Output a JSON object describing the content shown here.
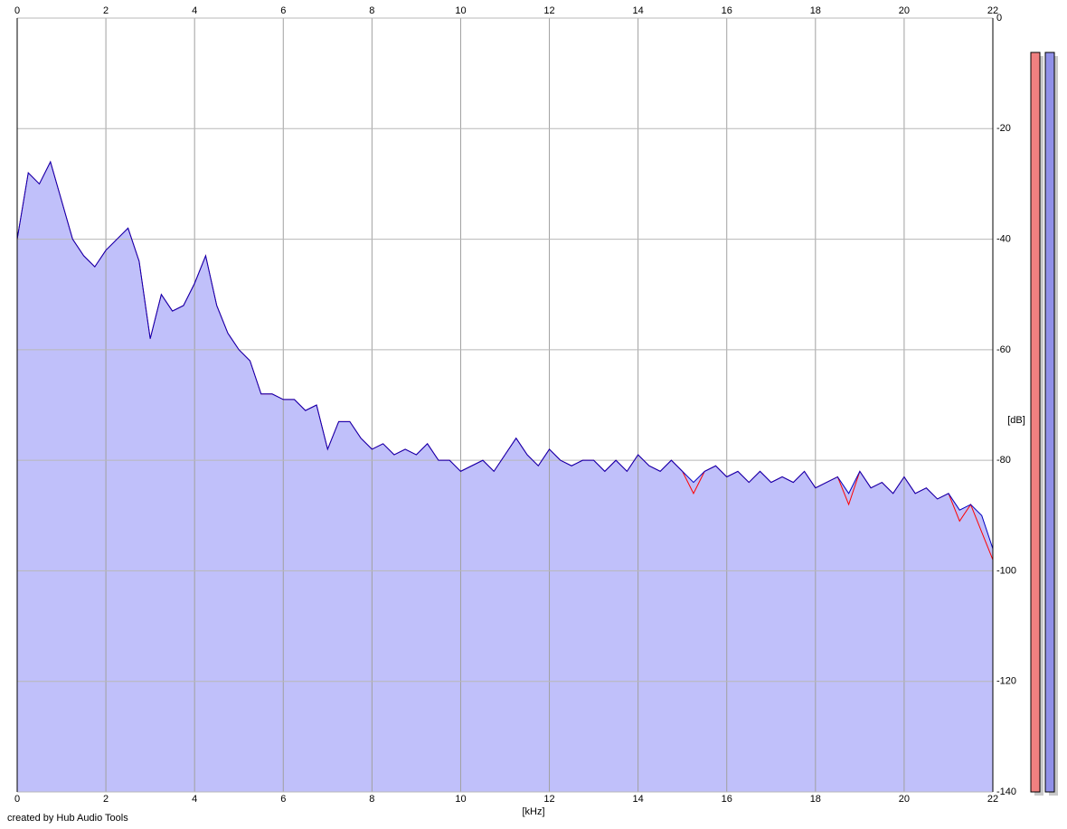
{
  "chart_data": {
    "type": "area",
    "x_label": "[kHz]",
    "y_label": "[dB]",
    "annotation": "created by Hub Audio Tools",
    "x": [
      0,
      0.25,
      0.5,
      0.75,
      1,
      1.25,
      1.5,
      1.75,
      2,
      2.25,
      2.5,
      2.75,
      3,
      3.25,
      3.5,
      3.75,
      4,
      4.25,
      4.5,
      4.75,
      5,
      5.25,
      5.5,
      5.75,
      6,
      6.25,
      6.5,
      6.75,
      7,
      7.25,
      7.5,
      7.75,
      8,
      8.25,
      8.5,
      8.75,
      9,
      9.25,
      9.5,
      9.75,
      10,
      10.25,
      10.5,
      10.75,
      11,
      11.25,
      11.5,
      11.75,
      12,
      12.25,
      12.5,
      12.75,
      13,
      13.25,
      13.5,
      13.75,
      14,
      14.25,
      14.5,
      14.75,
      15,
      15.25,
      15.5,
      15.75,
      16,
      16.25,
      16.5,
      16.75,
      17,
      17.25,
      17.5,
      17.75,
      18,
      18.25,
      18.5,
      18.75,
      19,
      19.25,
      19.5,
      19.75,
      20,
      20.25,
      20.5,
      20.75,
      21,
      21.25,
      21.5,
      21.75,
      22
    ],
    "series": [
      {
        "name": "L",
        "color": "#ff0000",
        "values": [
          -40,
          -28,
          -30,
          -26,
          -33,
          -40,
          -43,
          -45,
          -42,
          -40,
          -38,
          -44,
          -58,
          -50,
          -53,
          -52,
          -48,
          -43,
          -52,
          -57,
          -60,
          -62,
          -68,
          -68,
          -69,
          -69,
          -71,
          -70,
          -78,
          -73,
          -73,
          -76,
          -78,
          -77,
          -79,
          -78,
          -79,
          -77,
          -80,
          -80,
          -82,
          -81,
          -80,
          -82,
          -79,
          -76,
          -79,
          -81,
          -78,
          -80,
          -81,
          -80,
          -80,
          -82,
          -80,
          -82,
          -79,
          -81,
          -82,
          -80,
          -82,
          -86,
          -82,
          -81,
          -83,
          -82,
          -84,
          -82,
          -84,
          -83,
          -84,
          -82,
          -85,
          -84,
          -83,
          -88,
          -82,
          -85,
          -84,
          -86,
          -83,
          -86,
          -85,
          -87,
          -86,
          -91,
          -88,
          -93,
          -98
        ]
      },
      {
        "name": "R",
        "color": "#0000c0",
        "values": [
          -40,
          -28,
          -30,
          -26,
          -33,
          -40,
          -43,
          -45,
          -42,
          -40,
          -38,
          -44,
          -58,
          -50,
          -53,
          -52,
          -48,
          -43,
          -52,
          -57,
          -60,
          -62,
          -68,
          -68,
          -69,
          -69,
          -71,
          -70,
          -78,
          -73,
          -73,
          -76,
          -78,
          -77,
          -79,
          -78,
          -79,
          -77,
          -80,
          -80,
          -82,
          -81,
          -80,
          -82,
          -79,
          -76,
          -79,
          -81,
          -78,
          -80,
          -81,
          -80,
          -80,
          -82,
          -80,
          -82,
          -79,
          -81,
          -82,
          -80,
          -82,
          -84,
          -82,
          -81,
          -83,
          -82,
          -84,
          -82,
          -84,
          -83,
          -84,
          -82,
          -85,
          -84,
          -83,
          -86,
          -82,
          -85,
          -84,
          -86,
          -83,
          -86,
          -85,
          -87,
          -86,
          -89,
          -88,
          -90,
          -96
        ]
      }
    ],
    "fill_color": "#c0c0fa",
    "xlim": [
      0,
      22
    ],
    "xticks": [
      0,
      2,
      4,
      6,
      8,
      10,
      12,
      14,
      16,
      18,
      20,
      22
    ],
    "ylim": [
      -140,
      0
    ],
    "yticks": [
      0,
      -20,
      -40,
      -60,
      -80,
      -100,
      -120,
      -140
    ],
    "grid": true
  }
}
